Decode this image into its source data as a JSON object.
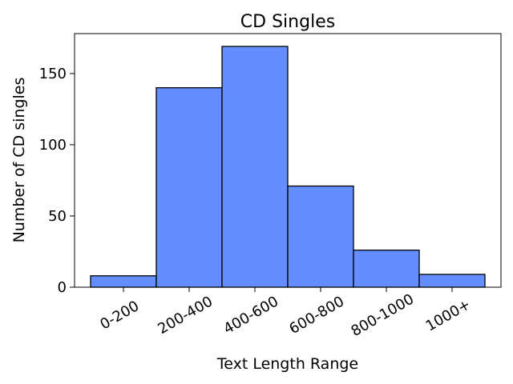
{
  "chart_data": {
    "type": "bar",
    "title": "CD Singles",
    "xlabel": "Text Length Range",
    "ylabel": "Number of CD singles",
    "categories": [
      "0-200",
      "200-400",
      "400-600",
      "600-800",
      "800-1000",
      "1000+"
    ],
    "values": [
      8,
      140,
      169,
      71,
      26,
      9
    ],
    "ylim": [
      0,
      178
    ],
    "yticks": [
      0,
      50,
      100,
      150
    ],
    "bar_color": "#648eff",
    "grid": false,
    "legend": "none"
  }
}
